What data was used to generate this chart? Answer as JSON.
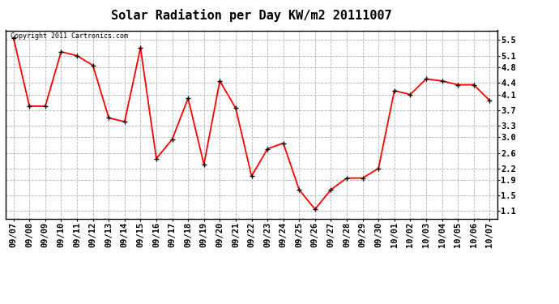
{
  "title": "Solar Radiation per Day KW/m2 20111007",
  "copyright": "Copyright 2011 Cartronics.com",
  "labels": [
    "09/07",
    "09/08",
    "09/09",
    "09/10",
    "09/11",
    "09/12",
    "09/13",
    "09/14",
    "09/15",
    "09/16",
    "09/17",
    "09/18",
    "09/19",
    "09/20",
    "09/21",
    "09/22",
    "09/23",
    "09/24",
    "09/25",
    "09/26",
    "09/27",
    "09/28",
    "09/29",
    "09/30",
    "10/01",
    "10/02",
    "10/03",
    "10/04",
    "10/05",
    "10/06",
    "10/07"
  ],
  "values": [
    5.55,
    3.8,
    3.8,
    5.2,
    5.1,
    4.85,
    3.5,
    3.4,
    5.3,
    2.45,
    2.95,
    4.0,
    2.3,
    4.45,
    3.75,
    2.0,
    2.7,
    2.85,
    1.65,
    1.15,
    1.65,
    1.95,
    1.95,
    2.2,
    4.2,
    4.1,
    4.5,
    4.45,
    4.35,
    4.35,
    3.95
  ],
  "line_color": "#ff0000",
  "marker_color": "#000000",
  "background_color": "#ffffff",
  "grid_color": "#aaaaaa",
  "yticks": [
    1.1,
    1.5,
    1.9,
    2.2,
    2.6,
    3.0,
    3.3,
    3.7,
    4.1,
    4.4,
    4.8,
    5.1,
    5.5
  ],
  "ylim": [
    0.9,
    5.75
  ],
  "title_fontsize": 11,
  "tick_fontsize": 7.5,
  "copyright_fontsize": 6
}
